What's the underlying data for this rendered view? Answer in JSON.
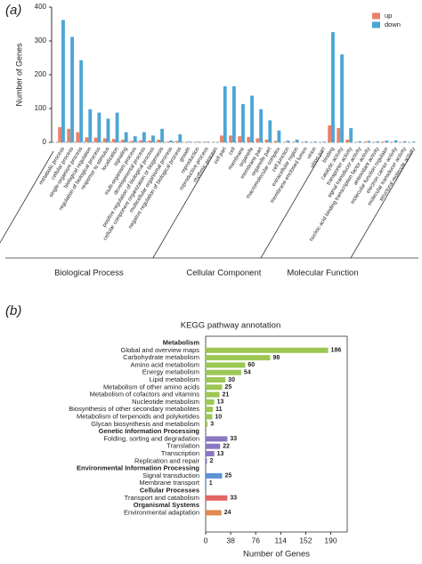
{
  "chart_data": [
    {
      "type": "bar",
      "panel": "(a)",
      "ylabel": "Number of Genes",
      "ylim": [
        0,
        400
      ],
      "yticks": [
        0,
        100,
        200,
        300,
        400
      ],
      "legend": "top-right",
      "groups": [
        {
          "name": "Biological Process",
          "categories": [
            "metabolic process",
            "cellular process",
            "single-organism process",
            "biological regulation",
            "regulation of biological process",
            "response to stimulus",
            "localization",
            "signaling",
            "multi-organism process",
            "developmental process",
            "positive regulation of biological process",
            "cellular component organization or biogenesis",
            "multicellular organismal process",
            "negative regulation of biological process",
            "growth",
            "reproduction",
            "reproductive process",
            "rhythmic process"
          ]
        },
        {
          "name": "Cellular Component",
          "categories": [
            "cell part",
            "cell",
            "membrane",
            "organelle",
            "membrane part",
            "organelle part",
            "macromolecular complex",
            "cell junction",
            "extracellular region",
            "membrane-enclosed lumen",
            "virion",
            "virion part"
          ]
        },
        {
          "name": "Molecular Function",
          "categories": [
            "binding",
            "catalytic activity",
            "transporter activity",
            "signal transducer activity",
            "nucleic acid binding transcription factor activity",
            "antioxidant activity",
            "molecular function regulator",
            "electron carrier activity",
            "molecular transducer activity",
            "structural molecule activity"
          ]
        }
      ],
      "series": [
        {
          "name": "up",
          "color": "#e8826a",
          "values": [
            45,
            40,
            30,
            15,
            14,
            12,
            10,
            8,
            4,
            6,
            5,
            8,
            2,
            4,
            1,
            1,
            1,
            0,
            20,
            20,
            18,
            16,
            12,
            8,
            4,
            1,
            1,
            0,
            0,
            0,
            50,
            42,
            8,
            1,
            2,
            1,
            2,
            1,
            1,
            0
          ]
        },
        {
          "name": "down",
          "color": "#4ba6d6",
          "values": [
            362,
            312,
            243,
            98,
            88,
            70,
            88,
            30,
            18,
            30,
            20,
            40,
            5,
            24,
            2,
            2,
            2,
            1,
            166,
            166,
            113,
            138,
            98,
            65,
            35,
            5,
            8,
            3,
            2,
            2,
            326,
            260,
            42,
            3,
            4,
            3,
            5,
            6,
            3,
            2
          ]
        }
      ]
    },
    {
      "type": "barh",
      "panel": "(b)",
      "title": "KEGG pathway annotation",
      "xlabel": "Number of Genes",
      "xlim": [
        0,
        215
      ],
      "xticks": [
        0,
        38,
        76,
        114,
        152,
        190
      ],
      "groups": [
        {
          "name": "Metabolism",
          "color": "#9cc754",
          "categories": [
            "Global and overview maps",
            "Carbohydrate metabolism",
            "Amino acid metabolism",
            "Energy metabolism",
            "Lipid metabolism",
            "Metabolism of other amino acids",
            "Metabolism of cofactors and vitamins",
            "Nucleotide metabolism",
            "Biosynthesis of other secondary metabolites",
            "Metabolism of terpenoids and polyketides",
            "Glycan biosynthesis and metabolism"
          ],
          "values": [
            186,
            98,
            60,
            54,
            30,
            25,
            21,
            13,
            11,
            10,
            3
          ]
        },
        {
          "name": "Genetic Information Processing",
          "color": "#8a77c2",
          "categories": [
            "Folding, sorting and degradation",
            "Translation",
            "Transcription",
            "Replication and repair"
          ],
          "values": [
            33,
            22,
            13,
            2
          ]
        },
        {
          "name": "Environmental Information Processing",
          "color": "#5b92d3",
          "categories": [
            "Signal transduction",
            "Membrane transport"
          ],
          "values": [
            25,
            1
          ]
        },
        {
          "name": "Cellular Processes",
          "color": "#e46464",
          "categories": [
            "Transport and catabolism"
          ],
          "values": [
            33
          ]
        },
        {
          "name": "Organismal Systems",
          "color": "#e08a52",
          "categories": [
            "Environmental adaptation"
          ],
          "values": [
            24
          ]
        }
      ]
    }
  ]
}
